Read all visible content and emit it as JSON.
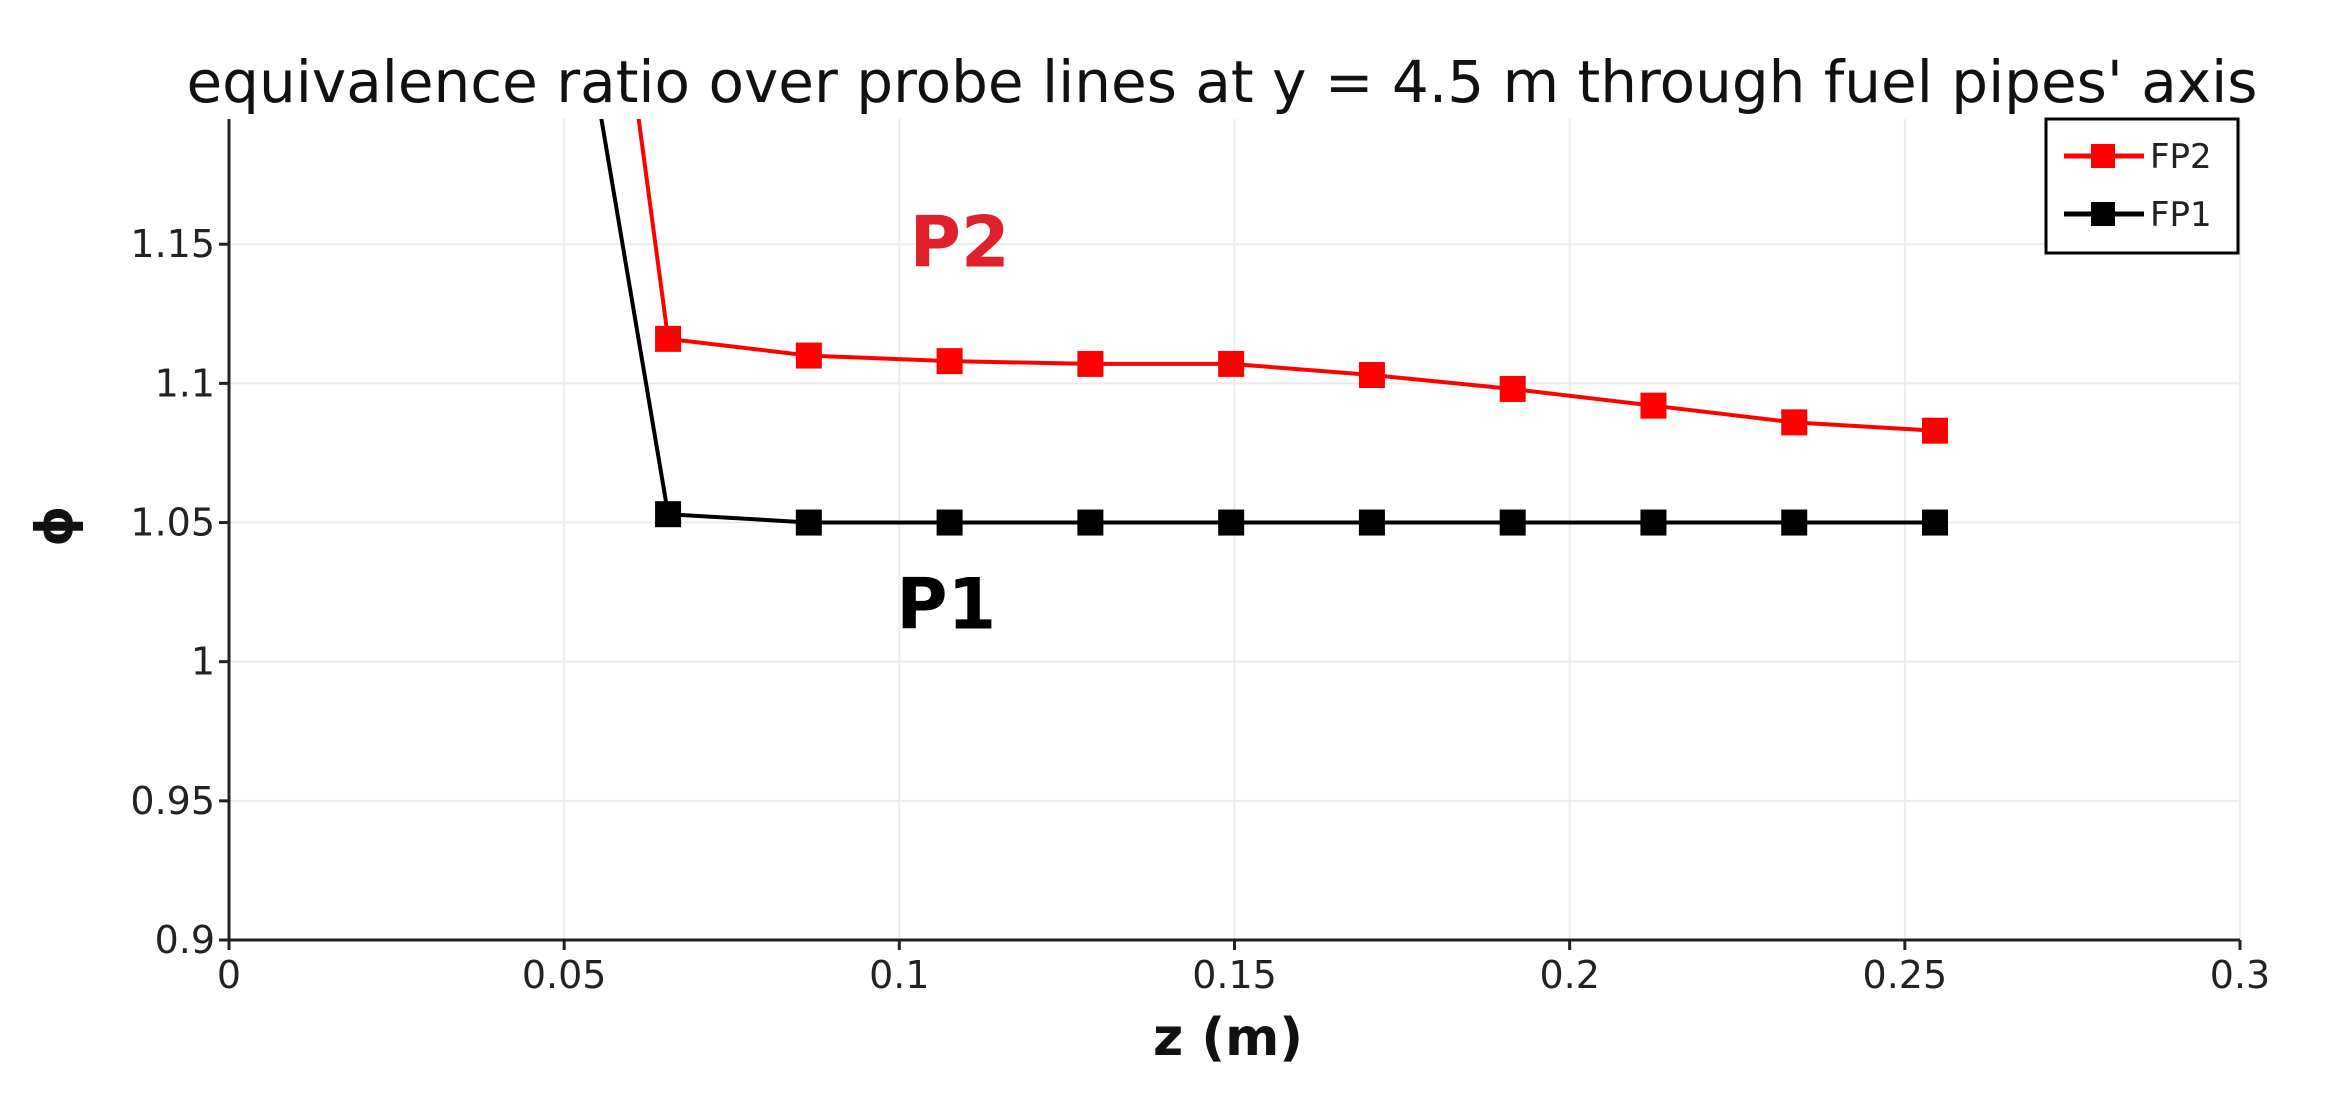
{
  "chart_data": {
    "type": "line",
    "title": "equivalence ratio over probe lines at y = 4.5 m through fuel pipes' axis",
    "xlabel": "z (m)",
    "ylabel": "ϕ",
    "xlim": [
      0,
      0.3
    ],
    "ylim": [
      0.9,
      1.195
    ],
    "x_ticks": [
      {
        "value": 0,
        "label": "0"
      },
      {
        "value": 0.05,
        "label": "0.05"
      },
      {
        "value": 0.1,
        "label": "0.1"
      },
      {
        "value": 0.15,
        "label": "0.15"
      },
      {
        "value": 0.2,
        "label": "0.2"
      },
      {
        "value": 0.25,
        "label": "0.25"
      },
      {
        "value": 0.3,
        "label": "0.3"
      }
    ],
    "y_ticks": [
      {
        "value": 0.9,
        "label": "0.9"
      },
      {
        "value": 0.95,
        "label": "0.95"
      },
      {
        "value": 1.0,
        "label": "1"
      },
      {
        "value": 1.05,
        "label": "1.05"
      },
      {
        "value": 1.1,
        "label": "1.1"
      },
      {
        "value": 1.15,
        "label": "1.15"
      }
    ],
    "grid": true,
    "legend_position": "top-right",
    "series": [
      {
        "name": "FP2",
        "color": "#ff0000",
        "marker": "square",
        "x": [
          0.0525,
          0.0655,
          0.0865,
          0.1075,
          0.1285,
          0.1495,
          0.1705,
          0.1915,
          0.2125,
          0.2335,
          0.2545
        ],
        "y": [
          1.35,
          1.116,
          1.11,
          1.108,
          1.107,
          1.107,
          1.103,
          1.098,
          1.092,
          1.086,
          1.083
        ],
        "marker_from_index": 1
      },
      {
        "name": "FP1",
        "color": "#000000",
        "marker": "square",
        "x": [
          0.0447,
          0.0655,
          0.0865,
          0.1075,
          0.1285,
          0.1495,
          0.1705,
          0.1915,
          0.2125,
          0.2335,
          0.2545
        ],
        "y": [
          1.35,
          1.053,
          1.05,
          1.05,
          1.05,
          1.05,
          1.05,
          1.05,
          1.05,
          1.05,
          1.05
        ],
        "marker_from_index": 1
      }
    ],
    "annotations": [
      {
        "text": "P2",
        "x": 0.109,
        "y": 1.142,
        "color": "#e0202a"
      },
      {
        "text": "P1",
        "x": 0.107,
        "y": 1.012,
        "color": "#000000"
      }
    ]
  }
}
